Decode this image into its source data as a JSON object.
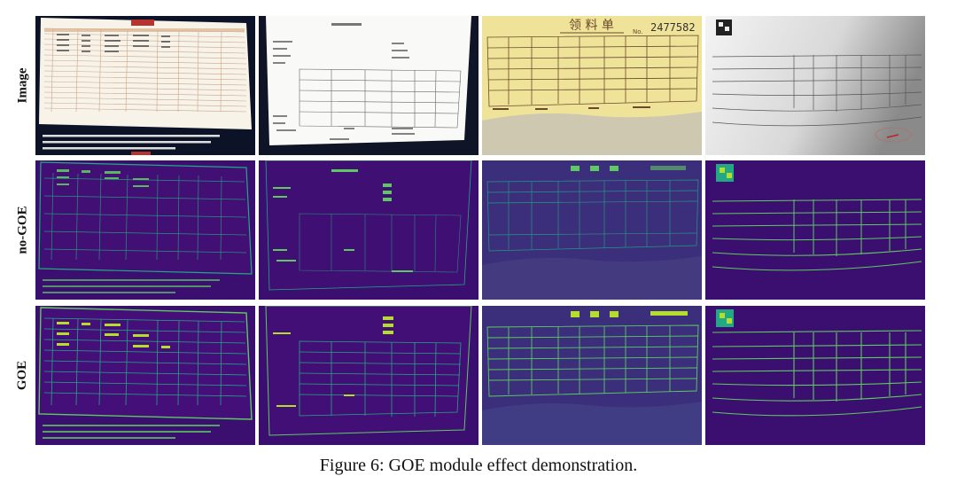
{
  "row_labels": [
    "Image",
    "no-GOE",
    "GOE"
  ],
  "caption": "Figure 6: GOE module effect demonstration.",
  "figure_texts": {
    "receipt_title": "领 料 单",
    "receipt_number": "2477582",
    "no_label": "No."
  },
  "colors": {
    "heatmap_bg": "#3b0f70",
    "heatmap_bg_alt": "#413d84",
    "heatmap_line": "#5ec962",
    "heatmap_glow": "#22a884",
    "heatmap_bright": "#b5de2b",
    "dark_bg": "#0d1326",
    "paper": "#f7f3e9",
    "receipt_yellow": "#efe39a",
    "receipt_ink": "#6a4a2a",
    "red_header": "#b6332f"
  }
}
